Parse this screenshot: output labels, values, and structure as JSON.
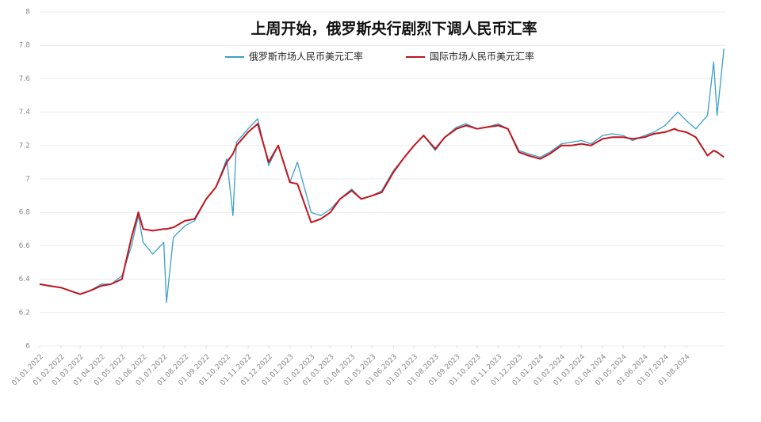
{
  "chart_data": {
    "type": "line",
    "title": "上周开始，俄罗斯央行剧烈下调人民币汇率",
    "x": [
      "01.01.2022",
      "15.01.2022",
      "01.02.2022",
      "15.02.2022",
      "01.03.2022",
      "15.03.2022",
      "01.04.2022",
      "15.04.2022",
      "01.05.2022",
      "15.05.2022",
      "25.05.2022",
      "01.06.2022",
      "15.06.2022",
      "01.07.2022",
      "05.07.2022",
      "15.07.2022",
      "01.08.2022",
      "15.08.2022",
      "01.09.2022",
      "15.09.2022",
      "01.10.2022",
      "10.10.2022",
      "15.10.2022",
      "01.11.2022",
      "15.11.2022",
      "01.12.2022",
      "15.12.2022",
      "01.01.2023",
      "12.01.2023",
      "01.02.2023",
      "15.02.2023",
      "01.03.2023",
      "15.03.2023",
      "01.04.2023",
      "15.04.2023",
      "01.05.2023",
      "15.05.2023",
      "01.06.2023",
      "15.06.2023",
      "01.07.2023",
      "15.07.2023",
      "01.08.2023",
      "15.08.2023",
      "01.09.2023",
      "15.09.2023",
      "01.10.2023",
      "15.10.2023",
      "01.11.2023",
      "15.11.2023",
      "01.12.2023",
      "15.12.2023",
      "01.01.2024",
      "15.01.2024",
      "01.02.2024",
      "15.02.2024",
      "01.03.2024",
      "15.03.2024",
      "01.04.2024",
      "15.04.2024",
      "01.05.2024",
      "15.05.2024",
      "01.06.2024",
      "15.06.2024",
      "01.07.2024",
      "15.07.2024",
      "20.07.2024",
      "01.08.2024",
      "15.08.2024",
      "01.09.2024",
      "10.09.2024",
      "15.09.2024",
      "25.09.2024"
    ],
    "series": [
      {
        "name": "俄罗斯市场人民币美元汇率",
        "color": "#3aa0c8",
        "values": [
          6.37,
          6.36,
          6.35,
          6.33,
          6.31,
          6.33,
          6.37,
          6.37,
          6.42,
          6.6,
          6.78,
          6.62,
          6.55,
          6.62,
          6.26,
          6.65,
          6.72,
          6.75,
          6.88,
          6.95,
          7.12,
          6.78,
          7.22,
          7.3,
          7.36,
          7.08,
          7.2,
          6.98,
          7.1,
          6.8,
          6.78,
          6.82,
          6.88,
          6.94,
          6.88,
          6.9,
          6.93,
          7.05,
          7.12,
          7.2,
          7.26,
          7.17,
          7.25,
          7.31,
          7.33,
          7.3,
          7.31,
          7.33,
          7.3,
          7.17,
          7.15,
          7.13,
          7.16,
          7.21,
          7.22,
          7.23,
          7.21,
          7.26,
          7.27,
          7.26,
          7.23,
          7.26,
          7.28,
          7.32,
          7.38,
          7.4,
          7.35,
          7.3,
          7.38,
          7.7,
          7.38,
          7.78
        ]
      },
      {
        "name": "国际市场人民币美元汇率",
        "color": "#c0141c",
        "values": [
          6.37,
          6.36,
          6.35,
          6.33,
          6.31,
          6.33,
          6.36,
          6.37,
          6.4,
          6.65,
          6.8,
          6.7,
          6.69,
          6.7,
          6.7,
          6.71,
          6.75,
          6.76,
          6.88,
          6.95,
          7.1,
          7.15,
          7.2,
          7.28,
          7.33,
          7.1,
          7.2,
          6.98,
          6.97,
          6.74,
          6.76,
          6.8,
          6.88,
          6.93,
          6.88,
          6.9,
          6.92,
          7.04,
          7.12,
          7.2,
          7.26,
          7.18,
          7.25,
          7.3,
          7.32,
          7.3,
          7.31,
          7.32,
          7.3,
          7.16,
          7.14,
          7.12,
          7.15,
          7.2,
          7.2,
          7.21,
          7.2,
          7.24,
          7.25,
          7.25,
          7.24,
          7.25,
          7.27,
          7.28,
          7.3,
          7.29,
          7.28,
          7.25,
          7.14,
          7.17,
          7.16,
          7.13
        ]
      }
    ],
    "xlim": [
      "01.01.2022",
      "27.09.2024"
    ],
    "xticks": [
      "01.01.2022",
      "01.02.2022",
      "01.03.2022",
      "01.04.2022",
      "01.05.2022",
      "01.06.2022",
      "01.07.2022",
      "01.08.2022",
      "01.09.2022",
      "01.10.2022",
      "01.11.2022",
      "01.12.2022",
      "01.01.2023",
      "01.02.2023",
      "01.03.2023",
      "01.04.2023",
      "01.05.2023",
      "01.06.2023",
      "01.07.2023",
      "01.08.2023",
      "01.09.2023",
      "01.10.2023",
      "01.11.2023",
      "01.12.2023",
      "01.01.2024",
      "01.02.2024",
      "01.03.2024",
      "01.04.2024",
      "01.05.2024",
      "01.06.2024",
      "01.07.2024",
      "01.08.2024"
    ],
    "ylim": [
      6,
      8
    ],
    "yticks": [
      6,
      6.2,
      6.4,
      6.6,
      6.8,
      7,
      7.2,
      7.4,
      7.6,
      7.8,
      8
    ],
    "grid": true,
    "legend": "top"
  }
}
